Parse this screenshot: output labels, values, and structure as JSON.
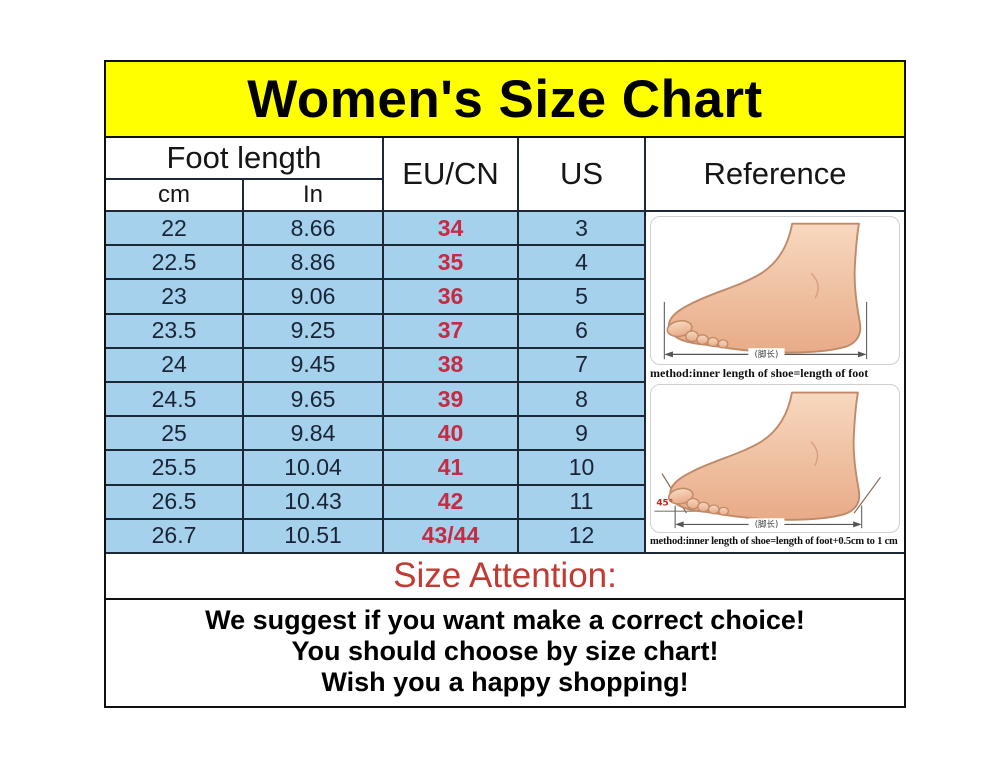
{
  "chart_data": {
    "type": "table",
    "title": "Women's Size Chart",
    "column_groups": {
      "foot_length": "Foot length"
    },
    "columns": [
      "cm",
      "In",
      "EU/CN",
      "US",
      "Reference"
    ],
    "rows": [
      [
        "22",
        "8.66",
        "34",
        "3"
      ],
      [
        "22.5",
        "8.86",
        "35",
        "4"
      ],
      [
        "23",
        "9.06",
        "36",
        "5"
      ],
      [
        "23.5",
        "9.25",
        "37",
        "6"
      ],
      [
        "24",
        "9.45",
        "38",
        "7"
      ],
      [
        "24.5",
        "9.65",
        "39",
        "8"
      ],
      [
        "25",
        "9.84",
        "40",
        "9"
      ],
      [
        "25.5",
        "10.04",
        "41",
        "10"
      ],
      [
        "26.5",
        "10.43",
        "42",
        "11"
      ],
      [
        "26.7",
        "10.51",
        "43/44",
        "12"
      ]
    ]
  },
  "reference": {
    "figure1_caption": "method:inner length of shoe=length of foot",
    "figure2_caption": "method:inner length of shoe=length of foot+0.5cm to 1 cm",
    "measure_label": "(脚长)",
    "angle_label": "45°"
  },
  "attention": {
    "heading": "Size Attention:"
  },
  "notes": {
    "lines": [
      "We suggest if you want make a correct choice!",
      "You should choose by size chart!",
      "Wish you a happy shopping!"
    ]
  },
  "colors": {
    "title_bg": "#ffff00",
    "row_bg": "#a5d1ec",
    "eu_red": "#c32c43",
    "attention_red": "#c13a34"
  }
}
